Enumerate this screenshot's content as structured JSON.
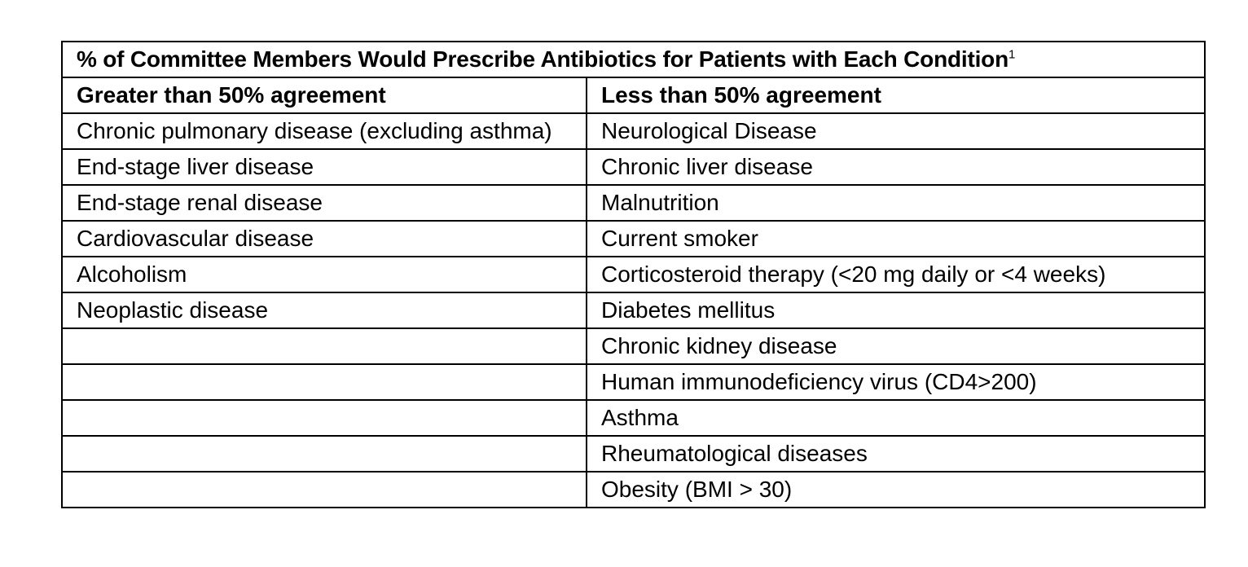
{
  "table": {
    "title": "% of Committee Members Would Prescribe Antibiotics for Patients with Each Condition",
    "title_superscript": "1",
    "headers": [
      "Greater than 50% agreement",
      "Less than 50% agreement"
    ],
    "rows": [
      [
        "Chronic pulmonary disease (excluding asthma)",
        "Neurological Disease"
      ],
      [
        "End-stage liver disease",
        "Chronic liver disease"
      ],
      [
        "End-stage renal disease",
        "Malnutrition"
      ],
      [
        "Cardiovascular disease",
        "Current smoker"
      ],
      [
        "Alcoholism",
        "Corticosteroid therapy (<20 mg daily or <4 weeks)"
      ],
      [
        "Neoplastic disease",
        "Diabetes mellitus"
      ],
      [
        "",
        "Chronic kidney disease"
      ],
      [
        "",
        "Human immunodeficiency virus (CD4>200)"
      ],
      [
        "",
        "Asthma"
      ],
      [
        "",
        "Rheumatological diseases"
      ],
      [
        "",
        "Obesity (BMI > 30)"
      ]
    ]
  }
}
